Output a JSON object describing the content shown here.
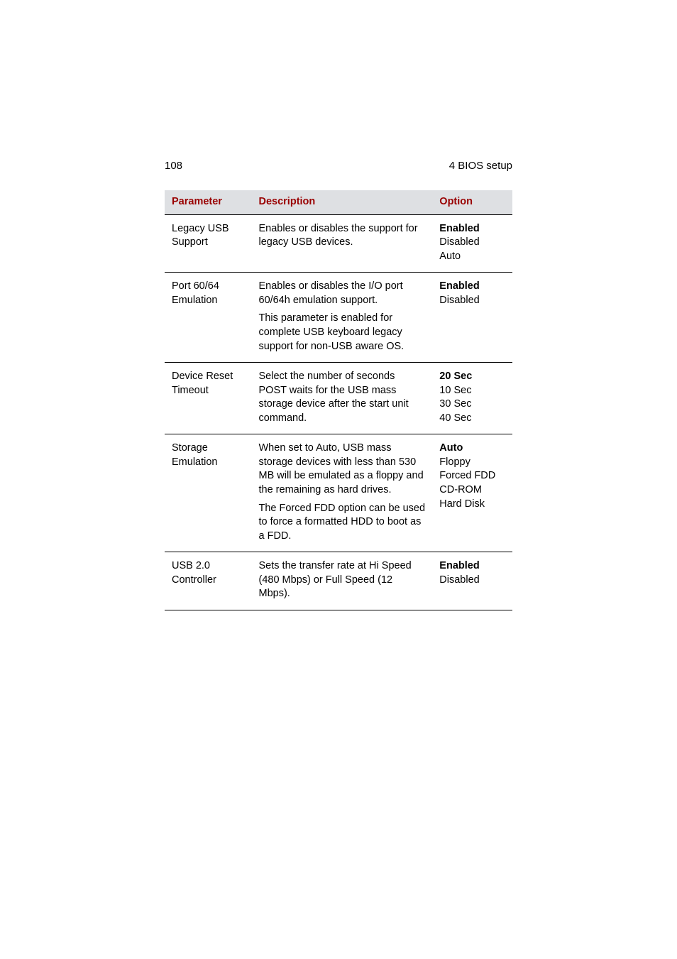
{
  "header": {
    "page_number": "108",
    "section": "4 BIOS setup"
  },
  "table": {
    "columns": {
      "parameter": "Parameter",
      "description": "Description",
      "option": "Option"
    },
    "rows": [
      {
        "param_l1": "Legacy USB",
        "param_l2": "Support",
        "desc_p1": "Enables or disables the support for legacy USB devices.",
        "desc_p2": "",
        "opt1": "Enabled",
        "opt2": "Disabled",
        "opt3": "Auto",
        "opt4": "",
        "opt5": ""
      },
      {
        "param_l1": "Port 60/64",
        "param_l2": "Emulation",
        "desc_p1": "Enables or disables the I/O port 60/64h emulation support.",
        "desc_p2": "This parameter is enabled for complete USB keyboard legacy support for non-USB aware OS.",
        "opt1": "Enabled",
        "opt2": "Disabled",
        "opt3": "",
        "opt4": "",
        "opt5": ""
      },
      {
        "param_l1": "Device Reset",
        "param_l2": "Timeout",
        "desc_p1": "Select the number of seconds POST waits for the USB mass storage device after the start unit command.",
        "desc_p2": "",
        "opt1": "20 Sec",
        "opt2": "10 Sec",
        "opt3": "30 Sec",
        "opt4": "40 Sec",
        "opt5": ""
      },
      {
        "param_l1": "Storage",
        "param_l2": "Emulation",
        "desc_p1": "When set to Auto, USB mass storage devices with less than 530 MB will be emulated as a floppy and the remaining as hard drives.",
        "desc_p2": "The Forced FDD option can be used to force a formatted HDD to boot as a FDD.",
        "opt1": "Auto",
        "opt2": "Floppy",
        "opt3": "Forced FDD",
        "opt4": "CD-ROM",
        "opt5": "Hard Disk"
      },
      {
        "param_l1": "USB 2.0",
        "param_l2": "Controller",
        "desc_p1": "Sets the transfer rate at Hi Speed (480 Mbps) or Full Speed (12 Mbps).",
        "desc_p2": "",
        "opt1": "Enabled",
        "opt2": "Disabled",
        "opt3": "",
        "opt4": "",
        "opt5": ""
      }
    ]
  }
}
